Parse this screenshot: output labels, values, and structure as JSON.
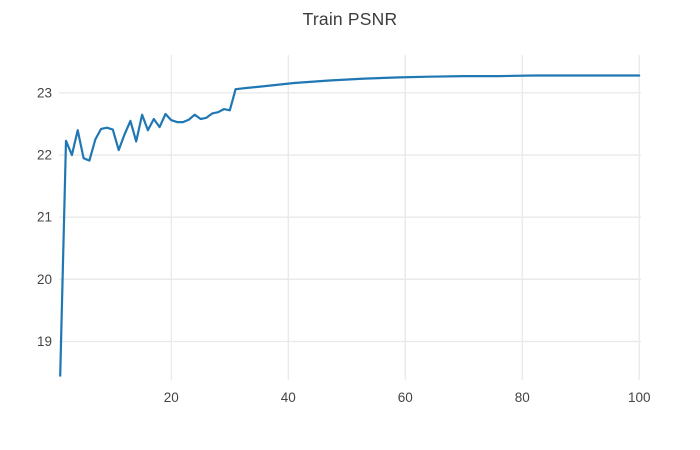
{
  "chart_data": {
    "type": "line",
    "title": "Train PSNR",
    "xlabel": "",
    "ylabel": "",
    "legend_position": "none",
    "grid": true,
    "x_ticks": [
      20,
      40,
      60,
      80,
      100
    ],
    "y_ticks": [
      19,
      20,
      21,
      22,
      23
    ],
    "xlim": [
      0.8,
      100.3
    ],
    "ylim": [
      18.38,
      23.61
    ],
    "series": [
      {
        "name": "Train PSNR",
        "color": "#1f77b4",
        "points": [
          [
            1,
            18.45
          ],
          [
            2,
            22.23
          ],
          [
            3,
            22.0
          ],
          [
            4,
            22.4
          ],
          [
            5,
            21.95
          ],
          [
            6,
            21.91
          ],
          [
            7,
            22.25
          ],
          [
            8,
            22.42
          ],
          [
            9,
            22.44
          ],
          [
            10,
            22.41
          ],
          [
            11,
            22.08
          ],
          [
            12,
            22.33
          ],
          [
            13,
            22.55
          ],
          [
            14,
            22.22
          ],
          [
            15,
            22.65
          ],
          [
            16,
            22.4
          ],
          [
            17,
            22.58
          ],
          [
            18,
            22.45
          ],
          [
            19,
            22.66
          ],
          [
            20,
            22.56
          ],
          [
            21,
            22.53
          ],
          [
            22,
            22.53
          ],
          [
            23,
            22.57
          ],
          [
            24,
            22.65
          ],
          [
            25,
            22.58
          ],
          [
            26,
            22.6
          ],
          [
            27,
            22.67
          ],
          [
            28,
            22.69
          ],
          [
            29,
            22.74
          ],
          [
            30,
            22.72
          ],
          [
            31,
            23.06
          ],
          [
            33,
            23.08
          ],
          [
            36,
            23.11
          ],
          [
            41,
            23.16
          ],
          [
            47,
            23.2
          ],
          [
            53,
            23.23
          ],
          [
            59,
            23.25
          ],
          [
            64,
            23.26
          ],
          [
            70,
            23.27
          ],
          [
            76,
            23.27
          ],
          [
            82,
            23.28
          ],
          [
            88,
            23.28
          ],
          [
            94,
            23.28
          ],
          [
            100,
            23.28
          ]
        ]
      }
    ],
    "colors": {
      "background": "#ffffff",
      "grid": "#e9e9e9",
      "tick_label": "#444444",
      "title": "#3d3d3d",
      "line": "#1f77b4"
    }
  }
}
